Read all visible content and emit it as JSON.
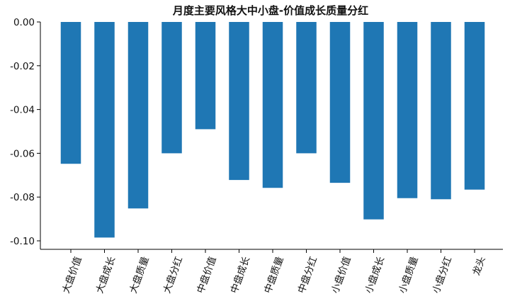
{
  "chart_data": {
    "type": "bar",
    "title": "月度主要风格大中小盘-价值成长质量分红",
    "xlabel": "",
    "ylabel": "",
    "categories": [
      "大盘价值",
      "大盘成长",
      "大盘质量",
      "大盘分红",
      "中盘价值",
      "中盘成长",
      "中盘质量",
      "中盘分红",
      "小盘价值",
      "小盘成长",
      "小盘质量",
      "小盘分红",
      "龙头"
    ],
    "values": [
      -0.0648,
      -0.0985,
      -0.0852,
      -0.06,
      -0.049,
      -0.0722,
      -0.0758,
      -0.06,
      -0.0735,
      -0.0902,
      -0.0805,
      -0.081,
      -0.0766
    ],
    "ylim": [
      -0.1035,
      0.0
    ],
    "yticks": [
      "0.00",
      "-0.02",
      "-0.04",
      "-0.06",
      "-0.08",
      "-0.10"
    ],
    "ytick_values": [
      0.0,
      -0.02,
      -0.04,
      -0.06,
      -0.08,
      -0.1
    ],
    "bar_color": "#1f77b4",
    "grid": false,
    "legend": "none"
  }
}
